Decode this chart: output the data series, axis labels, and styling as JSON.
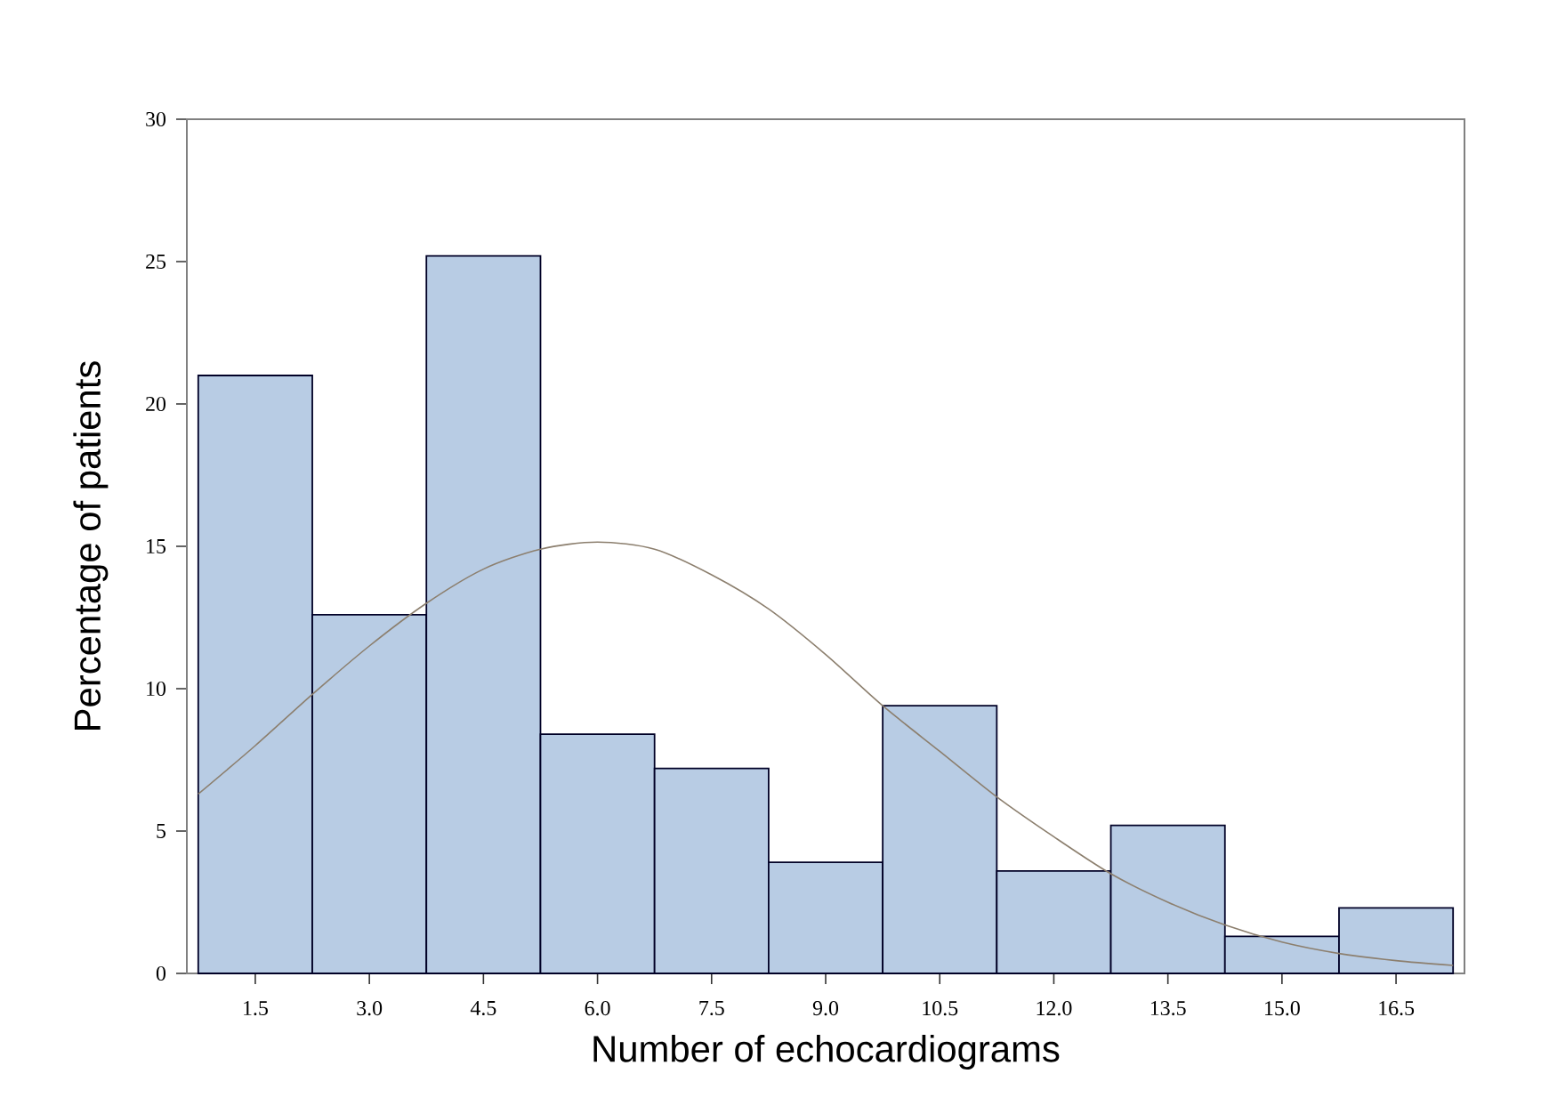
{
  "chart_data": {
    "type": "histogram",
    "xlabel": "Number of echocardiograms",
    "ylabel": "Percentage of patients",
    "xlim": [
      0.6,
      17.4
    ],
    "ylim": [
      0,
      30
    ],
    "xticks": [
      {
        "value": 1.5,
        "label": "1.5"
      },
      {
        "value": 3,
        "label": "3.0"
      },
      {
        "value": 4.5,
        "label": "4.5"
      },
      {
        "value": 6,
        "label": "6.0"
      },
      {
        "value": 7.5,
        "label": "7.5"
      },
      {
        "value": 9,
        "label": "9.0"
      },
      {
        "value": 10.5,
        "label": "10.5"
      },
      {
        "value": 12,
        "label": "12.0"
      },
      {
        "value": 13.5,
        "label": "13.5"
      },
      {
        "value": 15,
        "label": "15.0"
      },
      {
        "value": 16.5,
        "label": "16.5"
      }
    ],
    "yticks": [
      0,
      5,
      10,
      15,
      20,
      25,
      30
    ],
    "series": [
      {
        "type": "histogram",
        "color": "#b8cce4",
        "bins": [
          0.75,
          2.25,
          3.75,
          5.25,
          6.75,
          8.25,
          9.75,
          11.25,
          12.75,
          14.25,
          15.75,
          17.25
        ],
        "values": [
          21.0,
          12.6,
          25.2,
          8.4,
          7.2,
          3.9,
          9.4,
          3.6,
          5.2,
          1.3,
          2.3
        ]
      },
      {
        "type": "line",
        "color": "#8c7f6e",
        "marker": "none",
        "x": [
          0.75,
          1.5,
          2.25,
          3.0,
          3.75,
          4.5,
          5.25,
          6.0,
          6.75,
          7.5,
          8.25,
          9.0,
          9.75,
          10.5,
          11.25,
          12.0,
          12.75,
          13.5,
          14.25,
          15.0,
          15.75,
          16.5,
          17.25
        ],
        "values": [
          6.3,
          8.0,
          9.8,
          11.5,
          13.0,
          14.2,
          14.9,
          15.15,
          14.9,
          14.0,
          12.8,
          11.2,
          9.4,
          7.8,
          6.2,
          4.8,
          3.5,
          2.5,
          1.7,
          1.1,
          0.7,
          0.45,
          0.28
        ]
      }
    ]
  }
}
